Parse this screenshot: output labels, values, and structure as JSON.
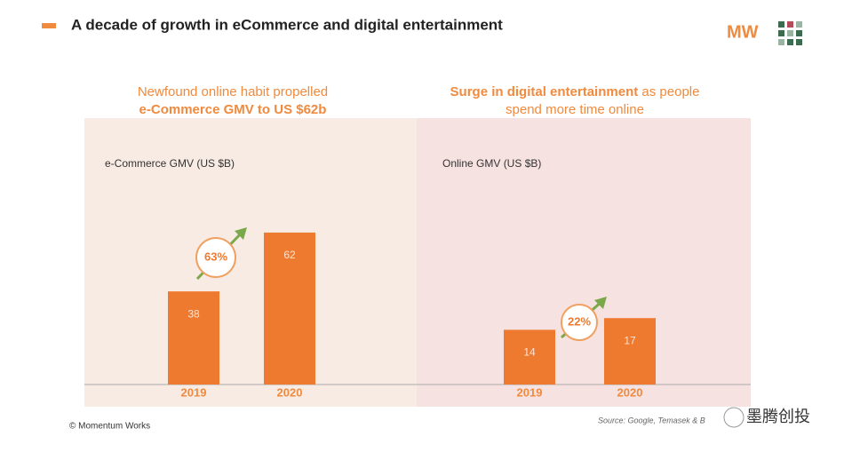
{
  "header": {
    "title": "A decade of growth in eCommerce and digital entertainment",
    "logo": "MW"
  },
  "chart_data": [
    {
      "type": "bar",
      "subtitle": [
        "Newfound online habit propelled",
        "e-Commerce GMV to US $62b"
      ],
      "y_label": "e-Commerce GMV (US $B)",
      "categories": [
        "2019",
        "2020"
      ],
      "values": [
        38,
        62
      ],
      "color": "#ee7a30",
      "annotation": "63%"
    },
    {
      "type": "bar",
      "subtitle": [
        "Surge in digital entertainment",
        " as people",
        "spend more time online"
      ],
      "y_label": "Online GMV (US $B)",
      "categories": [
        "2019",
        "2020"
      ],
      "values": [
        14,
        17
      ],
      "color": "#ee7a30",
      "annotation": "22%"
    }
  ],
  "footer": {
    "copyright": "© Momentum Works",
    "source": "Source: Google, Temasek & B",
    "watermark": "墨腾创投"
  }
}
